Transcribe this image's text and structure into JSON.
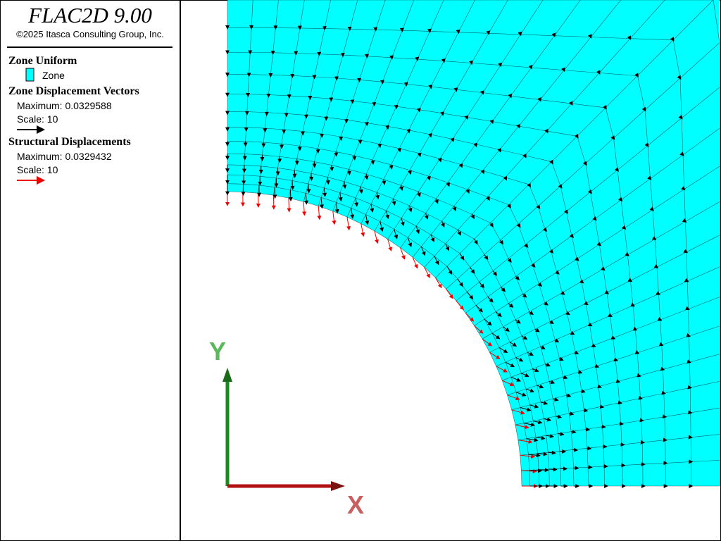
{
  "header": {
    "title": "FLAC2D 9.00",
    "copyright": "©2025 Itasca Consulting Group, Inc."
  },
  "legend": {
    "zone_group": {
      "title": "Zone Uniform",
      "item": "Zone"
    },
    "zone_vectors": {
      "title": "Zone Displacement Vectors",
      "maximum": "Maximum: 0.0329588",
      "scale": "Scale: 10"
    },
    "structural": {
      "title": "Structural Displacements",
      "maximum": "Maximum: 0.0329432",
      "scale": "Scale: 10"
    }
  },
  "axes": {
    "y": "Y",
    "x": "X"
  }
}
